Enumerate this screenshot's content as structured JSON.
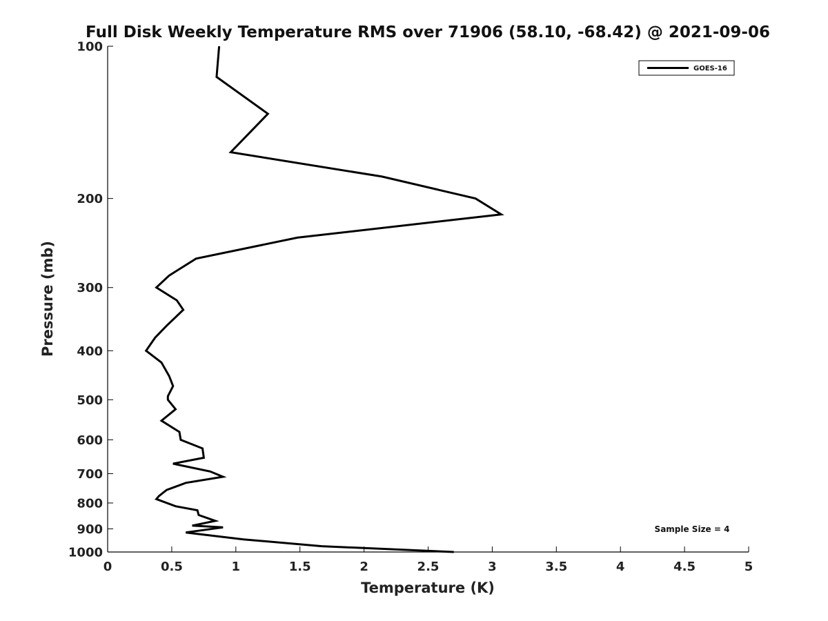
{
  "chart_data": {
    "type": "line",
    "title": "Full Disk Weekly Temperature RMS over 71906 (58.10, -68.42) @ 2021-09-06",
    "xlabel": "Temperature (K)",
    "ylabel": "Pressure (mb)",
    "xlim": [
      0,
      5
    ],
    "ylim": [
      100,
      1000
    ],
    "y_scale": "log",
    "y_reversed": true,
    "grid": false,
    "legend_position": "top-right",
    "x_ticks": [
      "0",
      "0.5",
      "1",
      "1.5",
      "2",
      "2.5",
      "3",
      "3.5",
      "4",
      "4.5",
      "5"
    ],
    "y_ticks": [
      "100",
      "200",
      "300",
      "400",
      "500",
      "600",
      "700",
      "800",
      "900",
      "1000"
    ],
    "series": [
      {
        "name": "GOES-16",
        "color": "#000000",
        "x": [
          0.87,
          0.85,
          1.25,
          0.96,
          2.14,
          2.87,
          3.07,
          1.48,
          0.69,
          0.48,
          0.38,
          0.54,
          0.59,
          0.46,
          0.37,
          0.3,
          0.42,
          0.48,
          0.51,
          0.47,
          0.47,
          0.53,
          0.42,
          0.56,
          0.57,
          0.74,
          0.75,
          0.51,
          0.8,
          0.9,
          0.61,
          0.46,
          0.4,
          0.38,
          0.53,
          0.7,
          0.71,
          0.84,
          0.66,
          0.9,
          0.61,
          1.06,
          1.67,
          2.7
        ],
        "y": [
          100,
          115,
          136,
          162,
          181,
          200,
          215,
          239,
          263,
          284,
          300,
          318,
          332,
          357,
          377,
          400,
          422,
          449,
          470,
          492,
          500,
          522,
          550,
          579,
          600,
          624,
          651,
          669,
          693,
          710,
          730,
          754,
          775,
          786,
          812,
          827,
          845,
          868,
          887,
          894,
          915,
          944,
          974,
          1000
        ]
      }
    ],
    "annotations": [
      "Sample Size = 4"
    ]
  }
}
